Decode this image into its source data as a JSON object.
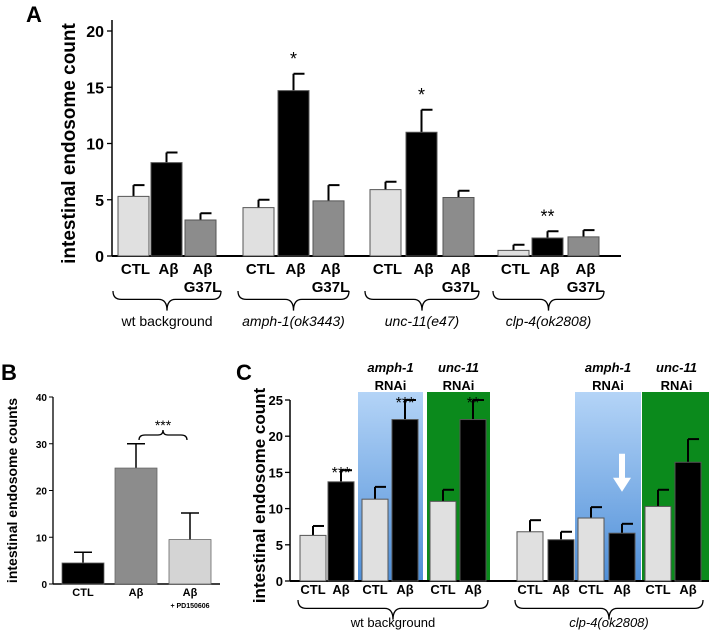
{
  "chart_data": [
    {
      "panel": "A",
      "type": "bar",
      "title": "",
      "xlabel": "",
      "ylabel": "intestinal endosome count",
      "ylim": [
        0,
        20
      ],
      "yticks": [
        0,
        5,
        10,
        15,
        20
      ],
      "colors": {
        "CTL": "#e0e0e0",
        "Aβ": "#000000",
        "Aβ G37L": "#8c8c8c"
      },
      "groups": [
        {
          "name": "wt background",
          "italic": false,
          "bars": [
            {
              "label": "CTL",
              "sublabel": "",
              "value": 5.3,
              "error": 1.0,
              "sig": ""
            },
            {
              "label": "Aβ",
              "sublabel": "",
              "value": 8.3,
              "error": 0.9,
              "sig": ""
            },
            {
              "label": "Aβ",
              "sublabel": "G37L",
              "value": 3.2,
              "error": 0.6,
              "sig": ""
            }
          ]
        },
        {
          "name": "amph-1(ok3443)",
          "italic": true,
          "bars": [
            {
              "label": "CTL",
              "sublabel": "",
              "value": 4.3,
              "error": 0.7,
              "sig": ""
            },
            {
              "label": "Aβ",
              "sublabel": "",
              "value": 14.7,
              "error": 1.5,
              "sig": "*"
            },
            {
              "label": "Aβ",
              "sublabel": "G37L",
              "value": 4.9,
              "error": 1.4,
              "sig": ""
            }
          ]
        },
        {
          "name": "unc-11(e47)",
          "italic": true,
          "bars": [
            {
              "label": "CTL",
              "sublabel": "",
              "value": 5.9,
              "error": 0.7,
              "sig": ""
            },
            {
              "label": "Aβ",
              "sublabel": "",
              "value": 11.0,
              "error": 2.0,
              "sig": "*"
            },
            {
              "label": "Aβ",
              "sublabel": "G37L",
              "value": 5.2,
              "error": 0.6,
              "sig": ""
            }
          ]
        },
        {
          "name": "clp-4(ok2808)",
          "italic": true,
          "bars": [
            {
              "label": "CTL",
              "sublabel": "",
              "value": 0.5,
              "error": 0.5,
              "sig": ""
            },
            {
              "label": "Aβ",
              "sublabel": "",
              "value": 1.6,
              "error": 0.6,
              "sig": "**"
            },
            {
              "label": "Aβ",
              "sublabel": "G37L",
              "value": 1.7,
              "error": 0.6,
              "sig": ""
            }
          ]
        }
      ]
    },
    {
      "panel": "B",
      "type": "bar",
      "title": "",
      "xlabel": "",
      "ylabel": "intestinal endosome counts",
      "ylim": [
        0,
        40
      ],
      "yticks": [
        0,
        10,
        20,
        30,
        40
      ],
      "bracket_sig": "***",
      "groups": [
        {
          "name": "",
          "italic": false,
          "bars": [
            {
              "label": "CTL",
              "sublabel": "",
              "value": 4.5,
              "error": 2.3,
              "sig": "",
              "color": "#000000"
            },
            {
              "label": "Aβ",
              "sublabel": "",
              "value": 24.8,
              "error": 5.2,
              "sig": "",
              "color": "#8c8c8c"
            },
            {
              "label": "Aβ",
              "sublabel": "+ PD150606",
              "value": 9.5,
              "error": 5.7,
              "sig": "",
              "color": "#d4d4d4"
            }
          ]
        }
      ]
    },
    {
      "panel": "C",
      "type": "bar",
      "title": "",
      "xlabel": "",
      "ylabel": "intestinal endosome count",
      "ylim": [
        0,
        25
      ],
      "yticks": [
        0,
        5,
        10,
        15,
        20,
        25
      ],
      "colors": {
        "CTL": "#e0e0e0",
        "Aβ": "#000000",
        "blue": "#7fb2ea",
        "green": "#0b8a1c"
      },
      "groups": [
        {
          "name": "wt background",
          "italic": false,
          "subgroups": [
            {
              "header": "",
              "header2": "",
              "background": "",
              "bars": [
                {
                  "label": "CTL",
                  "value": 6.3,
                  "error": 1.3,
                  "sig": ""
                },
                {
                  "label": "Aβ",
                  "value": 13.7,
                  "error": 1.6,
                  "sig": "***"
                }
              ]
            },
            {
              "header": "amph-1",
              "header2": "RNAi",
              "background": "blue",
              "bars": [
                {
                  "label": "CTL",
                  "value": 11.3,
                  "error": 1.7,
                  "sig": ""
                },
                {
                  "label": "Aβ",
                  "value": 22.3,
                  "error": 2.7,
                  "sig": "***"
                }
              ]
            },
            {
              "header": "unc-11",
              "header2": "RNAi",
              "background": "green",
              "bars": [
                {
                  "label": "CTL",
                  "value": 11.0,
                  "error": 1.6,
                  "sig": ""
                },
                {
                  "label": "Aβ",
                  "value": 22.3,
                  "error": 2.7,
                  "sig": "**"
                }
              ]
            }
          ]
        },
        {
          "name": "clp-4(ok2808)",
          "italic": true,
          "subgroups": [
            {
              "header": "",
              "header2": "",
              "background": "",
              "bars": [
                {
                  "label": "CTL",
                  "value": 6.8,
                  "error": 1.6,
                  "sig": ""
                },
                {
                  "label": "Aβ",
                  "value": 5.7,
                  "error": 1.1,
                  "sig": ""
                }
              ]
            },
            {
              "header": "amph-1",
              "header2": "RNAi",
              "background": "blue",
              "arrow_on_bar": 1,
              "bars": [
                {
                  "label": "CTL",
                  "value": 8.7,
                  "error": 1.5,
                  "sig": ""
                },
                {
                  "label": "Aβ",
                  "value": 6.6,
                  "error": 1.3,
                  "sig": ""
                }
              ]
            },
            {
              "header": "unc-11",
              "header2": "RNAi",
              "background": "green",
              "bars": [
                {
                  "label": "CTL",
                  "value": 10.3,
                  "error": 2.3,
                  "sig": ""
                },
                {
                  "label": "Aβ",
                  "value": 16.4,
                  "error": 3.2,
                  "sig": ""
                }
              ]
            }
          ]
        }
      ]
    }
  ]
}
